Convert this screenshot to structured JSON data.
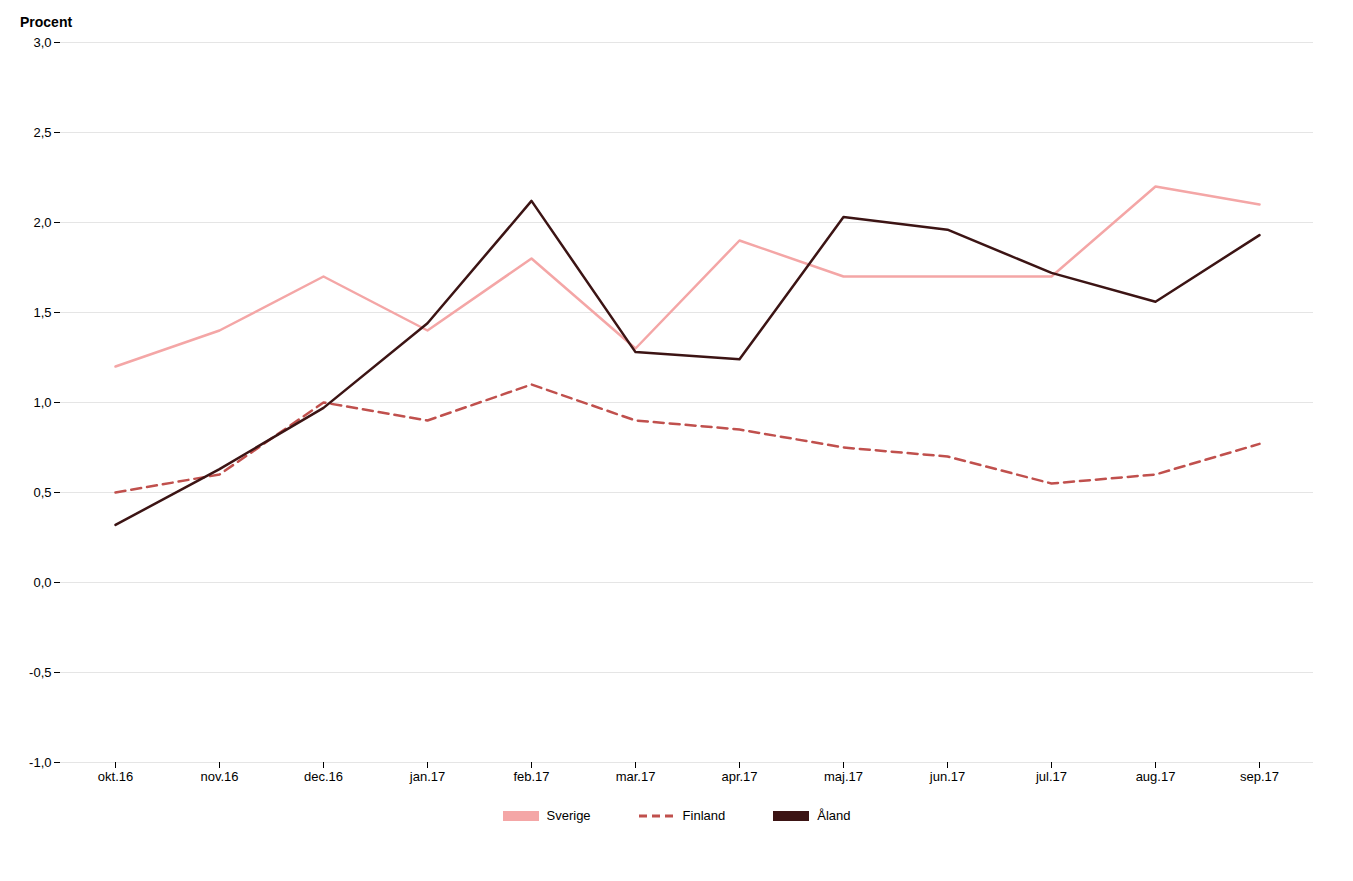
{
  "chart_data": {
    "type": "line",
    "ylabel": "Procent",
    "categories": [
      "okt.16",
      "nov.16",
      "dec.16",
      "jan.17",
      "feb.17",
      "mar.17",
      "apr.17",
      "maj.17",
      "jun.17",
      "jul.17",
      "aug.17",
      "sep.17"
    ],
    "series": [
      {
        "name": "Sverige",
        "color": "#f4a6a6",
        "line_style": "solid",
        "values": [
          1.2,
          1.4,
          1.7,
          1.4,
          1.8,
          1.3,
          1.9,
          1.7,
          1.7,
          1.7,
          2.2,
          2.1
        ]
      },
      {
        "name": "Finland",
        "color": "#c0504d",
        "line_style": "dashed",
        "values": [
          0.5,
          0.6,
          1.0,
          0.9,
          1.1,
          0.9,
          0.85,
          0.75,
          0.7,
          0.55,
          0.6,
          0.77
        ]
      },
      {
        "name": "Åland",
        "color": "#3c1414",
        "line_style": "solid",
        "values": [
          0.32,
          0.63,
          0.97,
          1.44,
          2.12,
          1.28,
          1.24,
          2.03,
          1.96,
          1.72,
          1.56,
          1.93
        ]
      }
    ],
    "ylim": [
      -1.0,
      3.0
    ],
    "yticks": [
      {
        "value": -1.0,
        "label": "-1,0"
      },
      {
        "value": -0.5,
        "label": "-0,5"
      },
      {
        "value": 0.0,
        "label": "0,0"
      },
      {
        "value": 0.5,
        "label": "0,5"
      },
      {
        "value": 1.0,
        "label": "1,0"
      },
      {
        "value": 1.5,
        "label": "1,5"
      },
      {
        "value": 2.0,
        "label": "2,0"
      },
      {
        "value": 2.5,
        "label": "2,5"
      },
      {
        "value": 3.0,
        "label": "3,0"
      }
    ],
    "grid": true,
    "legend": "bottom"
  }
}
